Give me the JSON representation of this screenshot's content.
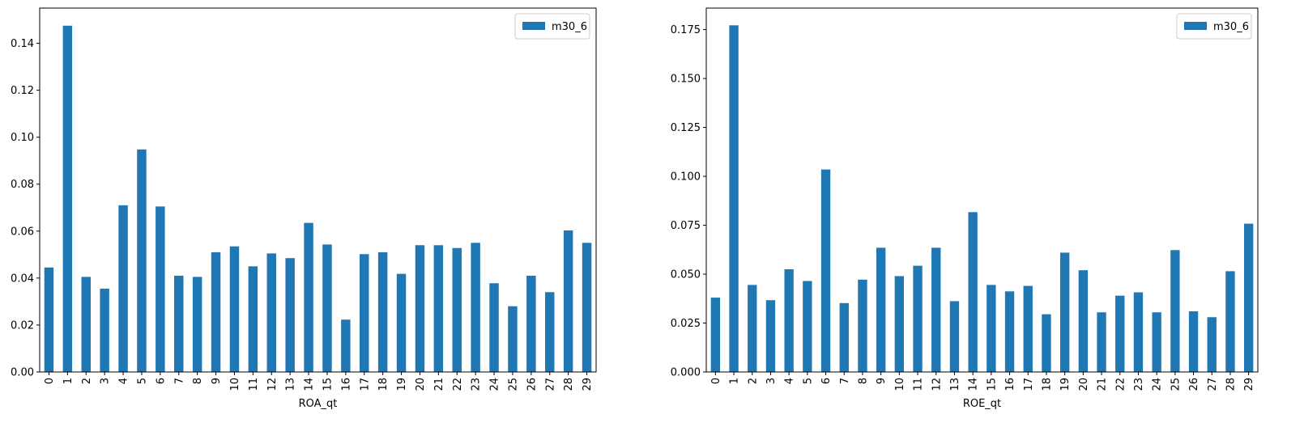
{
  "chart_data": [
    {
      "type": "bar",
      "xlabel": "ROA_qt",
      "ylabel": "",
      "ylim": [
        0,
        0.155
      ],
      "yticks": [
        0.0,
        0.02,
        0.04,
        0.06,
        0.08,
        0.1,
        0.12,
        0.14
      ],
      "ytick_labels": [
        "0.00",
        "0.02",
        "0.04",
        "0.06",
        "0.08",
        "0.10",
        "0.12",
        "0.14"
      ],
      "grid": false,
      "legend_position": "top-right",
      "categories": [
        "0",
        "1",
        "2",
        "3",
        "4",
        "5",
        "6",
        "7",
        "8",
        "9",
        "10",
        "11",
        "12",
        "13",
        "14",
        "15",
        "16",
        "17",
        "18",
        "19",
        "20",
        "21",
        "22",
        "23",
        "24",
        "25",
        "26",
        "27",
        "28",
        "29"
      ],
      "series": [
        {
          "name": "m30_6",
          "color": "#1f77b4",
          "values": [
            0.0445,
            0.1475,
            0.0405,
            0.0355,
            0.071,
            0.0948,
            0.0705,
            0.041,
            0.0405,
            0.051,
            0.0535,
            0.045,
            0.0505,
            0.0485,
            0.0635,
            0.0543,
            0.0223,
            0.0502,
            0.051,
            0.0418,
            0.054,
            0.054,
            0.0528,
            0.055,
            0.0378,
            0.028,
            0.041,
            0.034,
            0.0603,
            0.055
          ]
        }
      ]
    },
    {
      "type": "bar",
      "xlabel": "ROE_qt",
      "ylabel": "",
      "ylim": [
        0,
        0.186
      ],
      "yticks": [
        0.0,
        0.025,
        0.05,
        0.075,
        0.1,
        0.125,
        0.15,
        0.175
      ],
      "ytick_labels": [
        "0.000",
        "0.025",
        "0.050",
        "0.075",
        "0.100",
        "0.125",
        "0.150",
        "0.175"
      ],
      "grid": false,
      "legend_position": "top-right",
      "categories": [
        "0",
        "1",
        "2",
        "3",
        "4",
        "5",
        "6",
        "7",
        "8",
        "9",
        "10",
        "11",
        "12",
        "13",
        "14",
        "15",
        "16",
        "17",
        "18",
        "19",
        "20",
        "21",
        "22",
        "23",
        "24",
        "25",
        "26",
        "27",
        "28",
        "29"
      ],
      "series": [
        {
          "name": "m30_6",
          "color": "#1f77b4",
          "values": [
            0.038,
            0.1772,
            0.0445,
            0.0367,
            0.0525,
            0.0465,
            0.1035,
            0.0352,
            0.0472,
            0.0635,
            0.049,
            0.0543,
            0.0635,
            0.0362,
            0.0817,
            0.0445,
            0.0412,
            0.044,
            0.0295,
            0.061,
            0.052,
            0.0305,
            0.039,
            0.0407,
            0.0305,
            0.0623,
            0.031,
            0.028,
            0.0515,
            0.0758
          ]
        }
      ]
    }
  ]
}
